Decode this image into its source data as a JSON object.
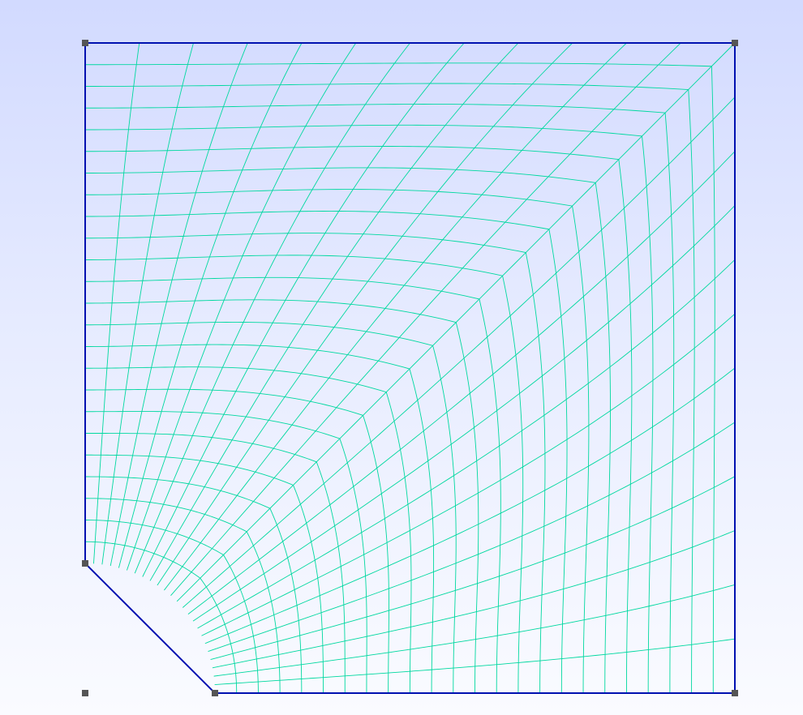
{
  "viewer": {
    "background_top": "#d2daff",
    "background_bottom": "#fafbff"
  },
  "mesh": {
    "description_visible": false,
    "n_radial_lines": 24,
    "n_circumferential_lines": 24,
    "mesh_color": "#00d8a0",
    "boundary_color": "#0010b0",
    "vertex_color": "#555555"
  }
}
